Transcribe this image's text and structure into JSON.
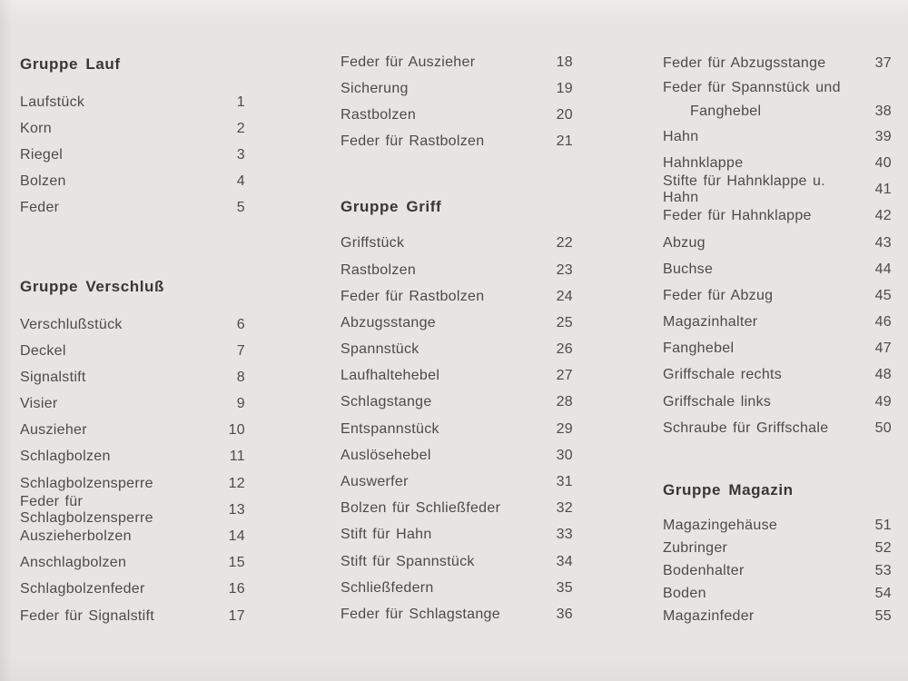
{
  "page": {
    "background": "#e6e5e2",
    "text_color": "#4d4b48",
    "heading_color": "#393734"
  },
  "columns": [
    {
      "name": "left",
      "sections": [
        {
          "heading": "Gruppe Lauf",
          "items": [
            {
              "label": "Laufstück",
              "number": "1"
            },
            {
              "label": "Korn",
              "number": "2"
            },
            {
              "label": "Riegel",
              "number": "3"
            },
            {
              "label": "Bolzen",
              "number": "4"
            },
            {
              "label": "Feder",
              "number": "5"
            }
          ]
        },
        {
          "heading": "Gruppe Verschluß",
          "items": [
            {
              "label": "Verschlußstück",
              "number": "6"
            },
            {
              "label": "Deckel",
              "number": "7"
            },
            {
              "label": "Signalstift",
              "number": "8"
            },
            {
              "label": "Visier",
              "number": "9"
            },
            {
              "label": "Auszieher",
              "number": "10"
            },
            {
              "label": "Schlagbolzen",
              "number": "11"
            },
            {
              "label": "Schlagbolzensperre",
              "number": "12"
            },
            {
              "label": "Feder für Schlagbolzensperre",
              "number": "13"
            },
            {
              "label": "Auszieherbolzen",
              "number": "14"
            },
            {
              "label": "Anschlagbolzen",
              "number": "15"
            },
            {
              "label": "Schlagbolzenfeder",
              "number": "16"
            },
            {
              "label": "Feder für Signalstift",
              "number": "17"
            }
          ]
        }
      ]
    },
    {
      "name": "middle",
      "sections": [
        {
          "heading": null,
          "items": [
            {
              "label": "Feder für Auszieher",
              "number": "18"
            },
            {
              "label": "Sicherung",
              "number": "19"
            },
            {
              "label": "Rastbolzen",
              "number": "20"
            },
            {
              "label": "Feder für Rastbolzen",
              "number": "21"
            }
          ]
        },
        {
          "heading": "Gruppe Griff",
          "items": [
            {
              "label": "Griffstück",
              "number": "22"
            },
            {
              "label": "Rastbolzen",
              "number": "23"
            },
            {
              "label": "Feder für Rastbolzen",
              "number": "24"
            },
            {
              "label": "Abzugsstange",
              "number": "25"
            },
            {
              "label": "Spannstück",
              "number": "26"
            },
            {
              "label": "Laufhaltehebel",
              "number": "27"
            },
            {
              "label": "Schlagstange",
              "number": "28"
            },
            {
              "label": "Entspannstück",
              "number": "29"
            },
            {
              "label": "Auslösehebel",
              "number": "30"
            },
            {
              "label": "Auswerfer",
              "number": "31"
            },
            {
              "label": "Bolzen für Schließfeder",
              "number": "32"
            },
            {
              "label": "Stift für Hahn",
              "number": "33"
            },
            {
              "label": "Stift für Spannstück",
              "number": "34"
            },
            {
              "label": "Schließfedern",
              "number": "35"
            },
            {
              "label": "Feder für Schlagstange",
              "number": "36"
            }
          ]
        }
      ]
    },
    {
      "name": "right",
      "sections": [
        {
          "heading": null,
          "items": [
            {
              "label": "Feder für Abzugsstange",
              "number": "37"
            },
            {
              "label": "Feder für Spannstück und",
              "label2": "Fanghebel",
              "number": "38"
            },
            {
              "label": "Hahn",
              "number": "39"
            },
            {
              "label": "Hahnklappe",
              "number": "40"
            },
            {
              "label": "Stifte für Hahnklappe u. Hahn",
              "number": "41"
            },
            {
              "label": "Feder für Hahnklappe",
              "number": "42"
            },
            {
              "label": "Abzug",
              "number": "43"
            },
            {
              "label": "Buchse",
              "number": "44"
            },
            {
              "label": "Feder für Abzug",
              "number": "45"
            },
            {
              "label": "Magazinhalter",
              "number": "46"
            },
            {
              "label": "Fanghebel",
              "number": "47"
            },
            {
              "label": "Griffschale rechts",
              "number": "48"
            },
            {
              "label": "Griffschale links",
              "number": "49"
            },
            {
              "label": "Schraube für Griffschale",
              "number": "50"
            }
          ]
        },
        {
          "heading": "Gruppe Magazin",
          "items": [
            {
              "label": "Magazingehäuse",
              "number": "51"
            },
            {
              "label": "Zubringer",
              "number": "52"
            },
            {
              "label": "Bodenhalter",
              "number": "53"
            },
            {
              "label": "Boden",
              "number": "54"
            },
            {
              "label": "Magazinfeder",
              "number": "55"
            }
          ]
        }
      ]
    }
  ]
}
